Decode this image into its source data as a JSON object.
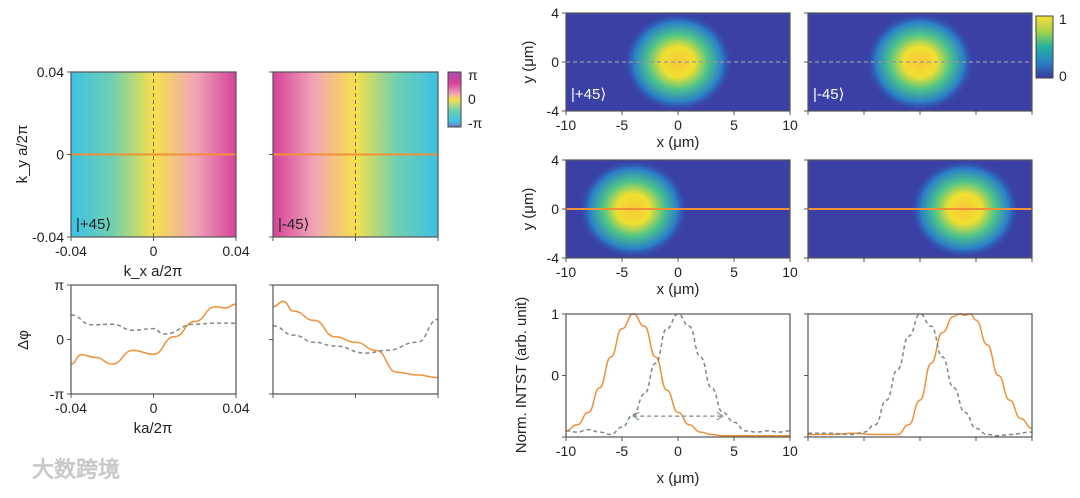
{
  "chart_data": [
    {
      "id": "phase_map_p45",
      "type": "heatmap",
      "label": "|+45⟩",
      "xlabel": "k_x a/2π",
      "ylabel": "k_y a/2π",
      "xticks": [
        "-0.04",
        "0",
        "0.04"
      ],
      "yticks": [
        "0.04",
        "0",
        "-0.04"
      ],
      "xlim": [
        -0.04,
        0.04
      ],
      "ylim": [
        -0.04,
        0.04
      ],
      "colors": [
        "#3ec1e6",
        "#6fd0b0",
        "#f7e04a",
        "#f0a6b6",
        "#d6429a"
      ]
    },
    {
      "id": "phase_map_m45",
      "type": "heatmap",
      "label": "|-45⟩",
      "xlim": [
        -0.04,
        0.04
      ],
      "ylim": [
        -0.04,
        0.04
      ],
      "colors": [
        "#d6429a",
        "#f0a6b6",
        "#f7e04a",
        "#6fd0b0",
        "#3ec1e6"
      ]
    },
    {
      "id": "phase_colorbar",
      "ticks": [
        "π",
        "0",
        "-π"
      ]
    },
    {
      "id": "phase_cut_p45",
      "type": "line",
      "xlabel": "ka/2π",
      "ylabel": "Δφ",
      "xticks": [
        "-0.04",
        "0",
        "0.04"
      ],
      "yticks": [
        "π",
        "0",
        "-π"
      ],
      "xlim": [
        -0.04,
        0.04
      ],
      "ylim_in_pi": [
        -1,
        1
      ],
      "series": [
        {
          "name": "solid",
          "style": "solid",
          "x": [
            -0.04,
            -0.035,
            -0.028,
            -0.02,
            -0.01,
            0,
            0.01,
            0.02,
            0.03,
            0.035,
            0.04
          ],
          "y": [
            -0.45,
            -0.28,
            -0.33,
            -0.45,
            -0.2,
            -0.27,
            0.05,
            0.33,
            0.6,
            0.58,
            0.65
          ]
        },
        {
          "name": "dashed",
          "style": "dashed",
          "x": [
            -0.04,
            -0.03,
            -0.02,
            -0.01,
            0,
            0.005,
            0.02,
            0.03,
            0.04
          ],
          "y": [
            0.45,
            0.27,
            0.28,
            0.17,
            0.2,
            0.1,
            0.28,
            0.3,
            0.3
          ]
        }
      ]
    },
    {
      "id": "phase_cut_m45",
      "type": "line",
      "xlim": [
        -0.04,
        0.04
      ],
      "ylim_in_pi": [
        -1,
        1
      ],
      "series": [
        {
          "name": "solid",
          "style": "solid",
          "x": [
            -0.04,
            -0.035,
            -0.03,
            -0.02,
            -0.01,
            0,
            0.01,
            0.02,
            0.03,
            0.04
          ],
          "y": [
            0.6,
            0.7,
            0.52,
            0.35,
            0.05,
            -0.05,
            -0.2,
            -0.6,
            -0.65,
            -0.7
          ]
        },
        {
          "name": "dashed",
          "style": "dashed",
          "x": [
            -0.04,
            -0.03,
            -0.02,
            -0.01,
            0.005,
            0.015,
            0.03,
            0.04
          ],
          "y": [
            0.25,
            0.08,
            -0.05,
            -0.12,
            -0.25,
            -0.2,
            -0.05,
            0.37
          ]
        }
      ]
    },
    {
      "id": "int_map_p45",
      "type": "heatmap",
      "label": "|+45⟩",
      "xlabel": "x (μm)",
      "ylabel": "y (μm)",
      "xticks": [
        "-10",
        "-5",
        "0",
        "5",
        "10"
      ],
      "yticks": [
        "4",
        "0",
        "-4"
      ],
      "xlim": [
        -10,
        10
      ],
      "ylim": [
        -4,
        4
      ],
      "spot_center_x": 0,
      "line": "dashed"
    },
    {
      "id": "int_map_m45",
      "type": "heatmap",
      "label": "|-45⟩",
      "xlim": [
        -10,
        10
      ],
      "ylim": [
        -4,
        4
      ],
      "spot_center_x": 0,
      "line": "dashed"
    },
    {
      "id": "int_colorbar",
      "ticks": [
        "1",
        "0"
      ]
    },
    {
      "id": "int_map_shift_left",
      "type": "heatmap",
      "xlabel": "x (μm)",
      "ylabel": "y (μm)",
      "xticks": [
        "-10",
        "-5",
        "0",
        "5",
        "10"
      ],
      "yticks": [
        "4",
        "0",
        "-4"
      ],
      "xlim": [
        -10,
        10
      ],
      "ylim": [
        -4,
        4
      ],
      "spot_center_x": -4,
      "line": "solid"
    },
    {
      "id": "int_map_shift_right",
      "type": "heatmap",
      "xlim": [
        -10,
        10
      ],
      "ylim": [
        -4,
        4
      ],
      "spot_center_x": 4,
      "line": "solid"
    },
    {
      "id": "int_cut_left",
      "type": "line",
      "xlabel": "x (μm)",
      "ylabel": "Norm. INTST (arb. unit)",
      "xticks": [
        "-10",
        "-5",
        "0",
        "5",
        "10"
      ],
      "yticks": [
        "1",
        "0"
      ],
      "xlim": [
        -10,
        10
      ],
      "ylim": [
        0,
        1
      ],
      "arrow": {
        "y": 0.17,
        "x": [
          -4,
          4
        ]
      },
      "series": [
        {
          "name": "solid",
          "style": "solid",
          "x": [
            -10,
            -9,
            -8,
            -7,
            -6,
            -5,
            -4,
            -3,
            -2,
            -1,
            0,
            1,
            2,
            3,
            4,
            5,
            6,
            7,
            8,
            9,
            10
          ],
          "y": [
            0.05,
            0.1,
            0.2,
            0.4,
            0.65,
            0.88,
            1,
            0.9,
            0.65,
            0.38,
            0.2,
            0.1,
            0.04,
            0.02,
            0.01,
            0.01,
            0.01,
            0.01,
            0.01,
            0.01,
            0.01
          ]
        },
        {
          "name": "dashed",
          "style": "dashed",
          "x": [
            -10,
            -9,
            -8,
            -7,
            -6,
            -5,
            -4,
            -3,
            -2,
            -1,
            0,
            1,
            2,
            3,
            4,
            5,
            6,
            7,
            8,
            9,
            10
          ],
          "y": [
            0.05,
            0.04,
            0.06,
            0.04,
            0.02,
            0.08,
            0.18,
            0.35,
            0.6,
            0.88,
            1,
            0.9,
            0.65,
            0.4,
            0.2,
            0.12,
            0.05,
            0.04,
            0.05,
            0.04,
            0.05
          ]
        }
      ]
    },
    {
      "id": "int_cut_right",
      "type": "line",
      "xlim": [
        -10,
        10
      ],
      "ylim": [
        0,
        1
      ],
      "series": [
        {
          "name": "solid",
          "style": "solid",
          "x": [
            -10,
            -8,
            -6,
            -4,
            -2,
            -1,
            0,
            1,
            2,
            3,
            3.5,
            4,
            4.5,
            5,
            6,
            7,
            8,
            9,
            10
          ],
          "y": [
            0.02,
            0.02,
            0.03,
            0.02,
            0.02,
            0.1,
            0.3,
            0.6,
            0.85,
            0.98,
            1,
            0.99,
            1,
            0.95,
            0.75,
            0.5,
            0.3,
            0.15,
            0.07
          ]
        },
        {
          "name": "dashed",
          "style": "dashed",
          "x": [
            -10,
            -8,
            -6,
            -5,
            -4,
            -3,
            -2,
            -1,
            0,
            1,
            2,
            3,
            4,
            5,
            6,
            7,
            8,
            10
          ],
          "y": [
            0.03,
            0.03,
            0.02,
            0.04,
            0.1,
            0.3,
            0.55,
            0.82,
            1,
            0.9,
            0.65,
            0.4,
            0.2,
            0.07,
            0.02,
            0.01,
            0.02,
            0.04
          ]
        }
      ]
    }
  ],
  "watermark": "大数跨境",
  "colors": {
    "orange": "#f0913a",
    "dashed": "#7a8a85",
    "axis": "#555555"
  }
}
